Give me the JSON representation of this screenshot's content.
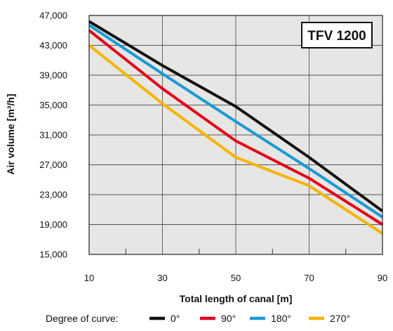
{
  "chart_data": {
    "type": "line",
    "title": "TFV 1200",
    "xlabel": "Total length of canal [m]",
    "ylabel": "Air volume [m³/h]",
    "x": [
      10,
      30,
      50,
      70,
      90
    ],
    "xticks": [
      "10",
      "30",
      "50",
      "70",
      "90"
    ],
    "xlim": [
      10,
      90
    ],
    "ylim": [
      15000,
      47000
    ],
    "yticks": [
      "15,000",
      "19,000",
      "23,000",
      "27,000",
      "31,000",
      "35,000",
      "39,000",
      "43,000",
      "47,000"
    ],
    "grid": true,
    "legend": {
      "label": "Degree of curve:",
      "position": "bottom"
    },
    "series": [
      {
        "name": "0°",
        "color": "#111111",
        "values": [
          46200,
          40300,
          34800,
          28000,
          20800
        ]
      },
      {
        "name": "90°",
        "color": "#e3001b",
        "values": [
          45000,
          37200,
          30200,
          25200,
          19000
        ]
      },
      {
        "name": "180°",
        "color": "#1a9ad6",
        "values": [
          45700,
          39200,
          32800,
          26500,
          20000
        ]
      },
      {
        "name": "270°",
        "color": "#f6b400",
        "values": [
          43000,
          35200,
          28000,
          24200,
          17800
        ]
      }
    ]
  }
}
